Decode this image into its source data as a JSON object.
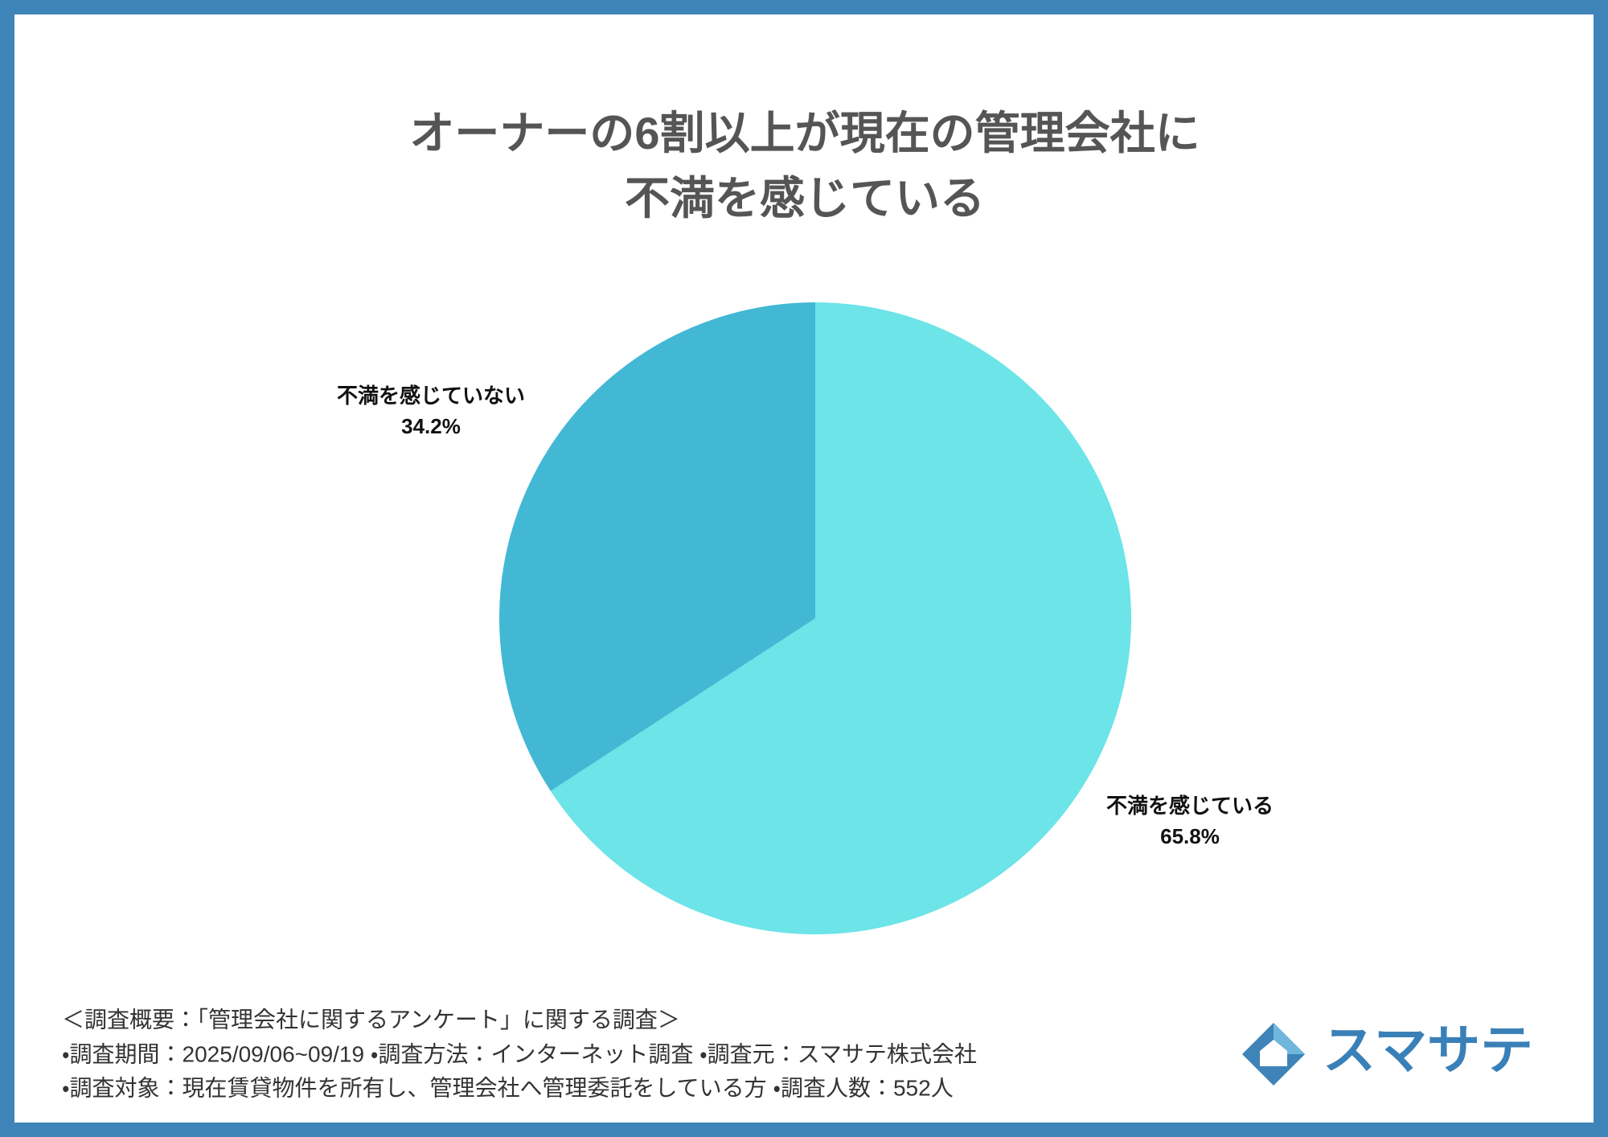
{
  "chart_data": {
    "type": "pie",
    "title": [
      "オーナーの6割以上が現在の管理会社に",
      "不満を感じている"
    ],
    "categories": [
      "不満を感じている",
      "不満を感じていない"
    ],
    "values": [
      65.8,
      34.2
    ],
    "value_labels": [
      "65.8%",
      "34.2%"
    ],
    "colors": [
      "#6ce4e8",
      "#43b8d4"
    ]
  },
  "footer": {
    "notes": [
      "＜調査概要：「管理会社に関するアンケート」に関する調査＞",
      "・調査期間：2025/09/06~09/19 ・調査方法：インターネット調査 ・調査元：スマサテ株式会社",
      "・調査対象：現在賃貸物件を所有し、管理会社へ管理委託をしている方 ・調査人数：552人"
    ],
    "logo": "スマサテ"
  }
}
